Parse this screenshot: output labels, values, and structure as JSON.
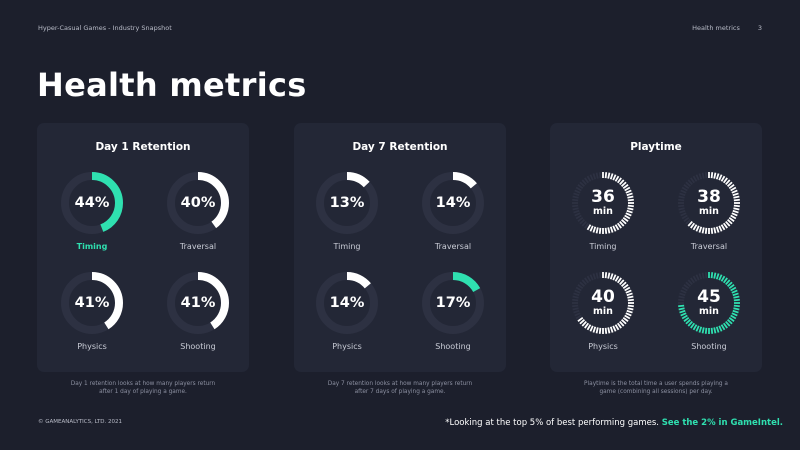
{
  "header": {
    "doc_title": "Hyper-Casual Games - Industry Snapshot",
    "section": "Health metrics",
    "page_number": "3"
  },
  "page_title": "Health metrics",
  "colors": {
    "accent": "#2fe0b0",
    "track": "#2d3142",
    "ring": "#ffffff"
  },
  "cards": [
    {
      "title": "Day 1 Retention",
      "caption_line1": "Day 1 retention looks at how many players return",
      "caption_line2": "after 1 day of playing a game.",
      "metrics": [
        {
          "label": "Timing",
          "value": "44%",
          "fraction": 0.44,
          "highlight": true
        },
        {
          "label": "Traversal",
          "value": "40%",
          "fraction": 0.4,
          "highlight": false
        },
        {
          "label": "Physics",
          "value": "41%",
          "fraction": 0.41,
          "highlight": false
        },
        {
          "label": "Shooting",
          "value": "41%",
          "fraction": 0.41,
          "highlight": false
        }
      ]
    },
    {
      "title": "Day 7 Retention",
      "caption_line1": "Day 7 retention looks at how many players return",
      "caption_line2": "after 7 days of playing a game.",
      "metrics": [
        {
          "label": "Timing",
          "value": "13%",
          "fraction": 0.13,
          "highlight": false
        },
        {
          "label": "Traversal",
          "value": "14%",
          "fraction": 0.14,
          "highlight": false
        },
        {
          "label": "Physics",
          "value": "14%",
          "fraction": 0.14,
          "highlight": false
        },
        {
          "label": "Shooting",
          "value": "17%",
          "fraction": 0.17,
          "highlight": true
        }
      ]
    },
    {
      "title": "Playtime",
      "caption_line1": "Playtime is the total time a user spends playing a",
      "caption_line2": "game (combining all sessions) per day.",
      "metrics": [
        {
          "label": "Timing",
          "value": "36",
          "unit": "min",
          "minutes": 36,
          "highlight": false
        },
        {
          "label": "Traversal",
          "value": "38",
          "unit": "min",
          "minutes": 38,
          "highlight": false
        },
        {
          "label": "Physics",
          "value": "40",
          "unit": "min",
          "minutes": 40,
          "highlight": false
        },
        {
          "label": "Shooting",
          "value": "45",
          "unit": "min",
          "minutes": 45,
          "highlight": true
        }
      ]
    }
  ],
  "footer": {
    "copyright": "© GAMEANALYTICS, LTD. 2021",
    "footnote": "*Looking at the top 5% of best performing games.",
    "footnote_link": "See the 2% in GameIntel."
  }
}
